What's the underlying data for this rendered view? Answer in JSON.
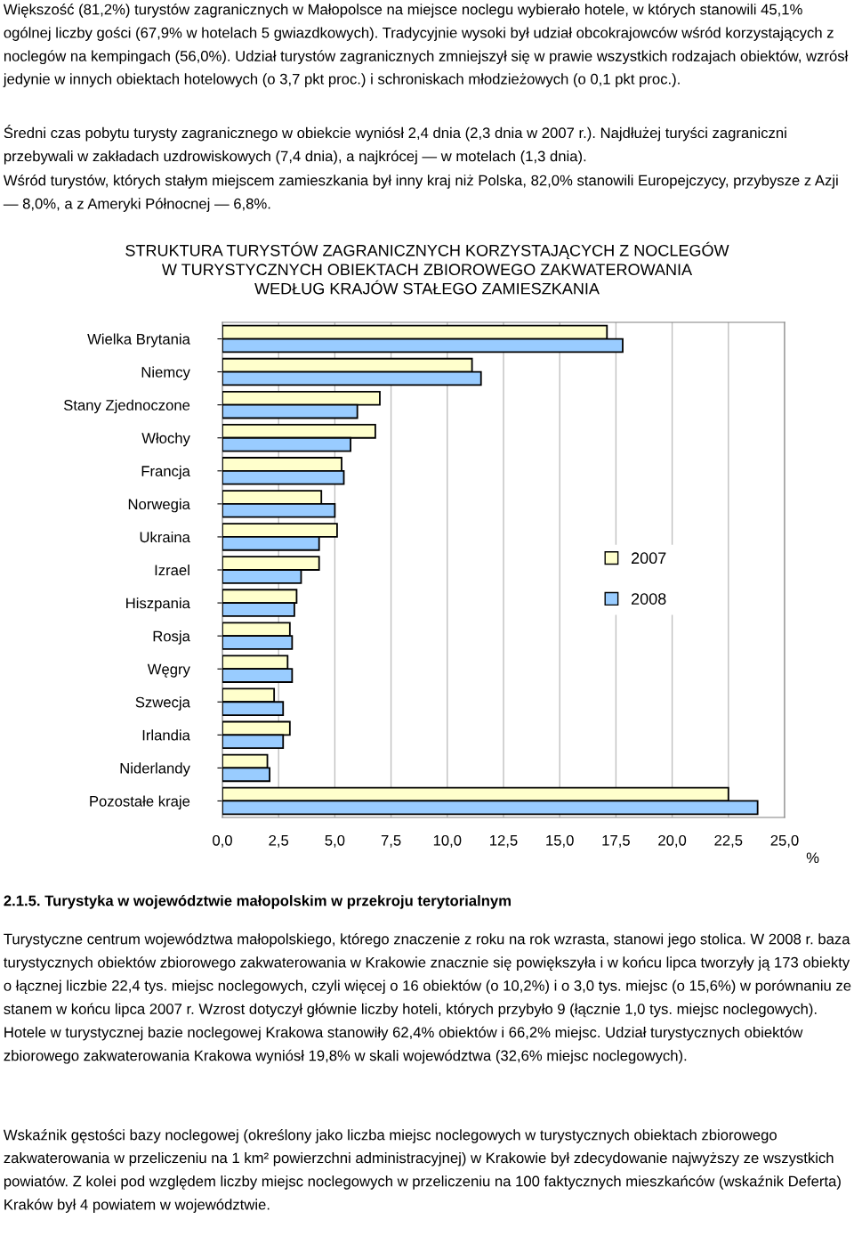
{
  "chart_data": {
    "type": "bar",
    "orientation": "horizontal",
    "title": "STRUKTURA TURYSTÓW ZAGRANICZNYCH KORZYSTAJĄCYCH Z NOCLEGÓW\nW TURYSTYCZNYCH OBIEKTACH ZBIOROWEGO ZAKWATEROWANIA\nWEDŁUG KRAJÓW STAŁEGO ZAMIESZKANIA",
    "xlabel": "%",
    "categories": [
      "Wielka Brytania",
      "Niemcy",
      "Stany Zjednoczone",
      "Włochy",
      "Francja",
      "Norwegia",
      "Ukraina",
      "Izrael",
      "Hiszpania",
      "Rosja",
      "Węgry",
      "Szwecja",
      "Irlandia",
      "Niderlandy",
      "Pozostałe kraje"
    ],
    "series": [
      {
        "name": "2007",
        "color": "#ffffcc",
        "values": [
          17.1,
          11.1,
          7.0,
          6.8,
          5.3,
          4.4,
          5.1,
          4.3,
          3.3,
          3.0,
          2.9,
          2.3,
          3.0,
          2.0,
          22.5
        ]
      },
      {
        "name": "2008",
        "color": "#99ccff",
        "values": [
          17.8,
          11.5,
          6.0,
          5.7,
          5.4,
          5.0,
          4.3,
          3.5,
          3.2,
          3.1,
          3.1,
          2.7,
          2.7,
          2.1,
          23.8
        ]
      }
    ],
    "xlim": [
      0,
      25
    ],
    "xticks": [
      {
        "value": 0,
        "label": "0,0"
      },
      {
        "value": 2.5,
        "label": "2,5"
      },
      {
        "value": 5,
        "label": "5,0"
      },
      {
        "value": 7.5,
        "label": "7,5"
      },
      {
        "value": 10,
        "label": "10,0"
      },
      {
        "value": 12.5,
        "label": "12,5"
      },
      {
        "value": 15,
        "label": "15,0"
      },
      {
        "value": 17.5,
        "label": "17,5"
      },
      {
        "value": 20,
        "label": "20,0"
      },
      {
        "value": 22.5,
        "label": "22,5"
      },
      {
        "value": 25,
        "label": "25,0"
      }
    ],
    "grid": "x",
    "legend": "right",
    "annotations": [
      "Większość (81,2%) turystów zagranicznych w Małopolsce na miejsce noclegu wybierało hotele, w których stanowili 45,1% ogólnej liczby gości (67,9% w hotelach 5 gwiazdkowych). Tradycyjnie wysoki był udział obcokrajowców wśród korzystających z noclegów na kempingach (56,0%). Udział turystów zagranicznych zmniejszył się w prawie wszystkich rodzajach obiektów, wzrósł jedynie w innych obiektach hotelowych (o 3,7 pkt proc.) i schroniskach młodzieżowych (o 0,1 pkt proc.).",
      "Średni czas pobytu turysty zagranicznego w obiekcie wyniósł 2,4 dnia (2,3 dnia w 2007 r.). Najdłużej turyści zagraniczni przebywali w zakładach uzdrowiskowych (7,4 dnia), a najkrócej — w motelach (1,3 dnia).",
      "Wśród turystów, których stałym miejscem zamieszkania był inny kraj niż Polska, 82,0% stanowili Europejczycy, przybysze z Azji — 8,0%, a z Ameryki Północnej — 6,8%.",
      "2.1.5. Turystyka w województwie małopolskim w przekroju terytorialnym",
      "Turystyczne centrum województwa małopolskiego, którego znaczenie z roku na rok wzrasta, stanowi jego stolica. W 2008 r. baza turystycznych obiektów zbiorowego zakwaterowania w Krakowie znacznie się powiększyła i w końcu lipca tworzyły ją 173 obiekty o łącznej liczbie 22,4 tys. miejsc noclegowych, czyli więcej o 16 obiektów (o 10,2%) i o 3,0 tys. miejsc (o 15,6%) w porównaniu ze stanem w końcu lipca 2007 r. Wzrost dotyczył głównie liczby hoteli, których przybyło 9 (łącznie 1,0 tys. miejsc noclegowych). Hotele w turystycznej bazie noclegowej Krakowa stanowiły 62,4% obiektów i 66,2% miejsc. Udział turystycznych obiektów zbiorowego zakwaterowania Krakowa wyniósł 19,8% w skali województwa (32,6% miejsc noclegowych).",
      "Wskaźnik gęstości bazy noclegowej (określony jako liczba miejsc noclegowych w turystycznych obiektach zbiorowego zakwaterowania w przeliczeniu na 1 km² powierzchni administracyjnej) w Krakowie był zdecydowanie najwyższy ze wszystkich powiatów. Z kolei pod względem liczby miejsc noclegowych w przeliczeniu na 100 faktycznych mieszkańców (wskaźnik Deferta) Kraków był 4 powiatem w województwie."
    ]
  }
}
